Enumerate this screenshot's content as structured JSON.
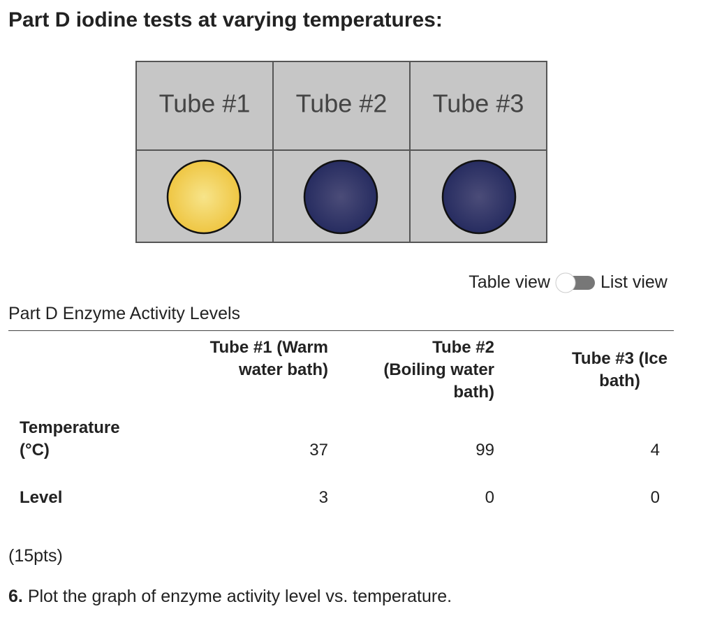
{
  "header": {
    "title": "Part D iodine tests at varying temperatures:"
  },
  "image": {
    "labels": [
      "Tube #1",
      "Tube #2",
      "Tube #3"
    ]
  },
  "toggle": {
    "left": "Table view",
    "right": "List view"
  },
  "table": {
    "caption": "Part D Enzyme Activity Levels",
    "columns": [
      "Tube #1 (Warm water bath)",
      "Tube #2 (Boiling water bath)",
      "Tube #3 (Ice bath)"
    ],
    "rows": [
      {
        "label": "Temperature (°C)",
        "values": [
          37,
          99,
          4
        ]
      },
      {
        "label": "Level",
        "values": [
          3,
          0,
          0
        ]
      }
    ]
  },
  "points": "(15pts)",
  "question": {
    "number": "6.",
    "text": "Plot the graph of enzyme activity level vs. temperature."
  }
}
